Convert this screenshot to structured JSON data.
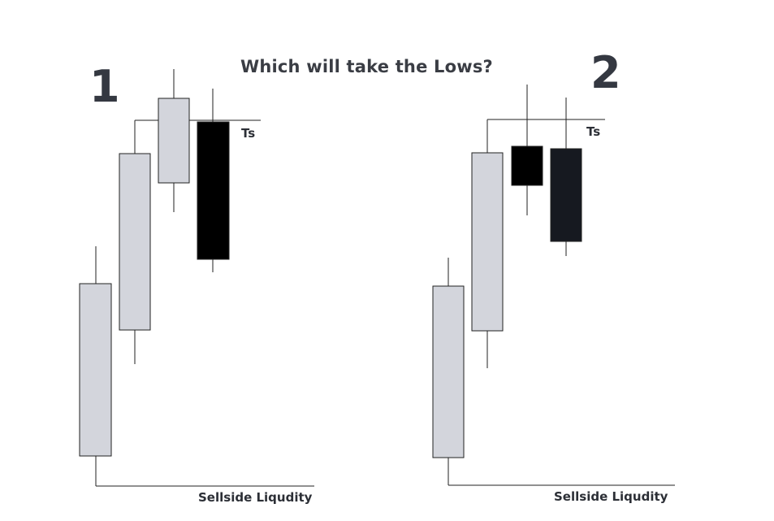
{
  "title": "Which will take the Lows?",
  "panels": [
    {
      "number": "1",
      "top_label": "Ts",
      "bottom_label": "Sellside Liqudity",
      "candles": [
        {
          "direction": "bull",
          "color": "#d3d5dc"
        },
        {
          "direction": "bull",
          "color": "#d3d5dc"
        },
        {
          "direction": "bull",
          "color": "#d3d5dc"
        },
        {
          "direction": "bear",
          "color": "#000000"
        }
      ]
    },
    {
      "number": "2",
      "top_label": "Ts",
      "bottom_label": "Sellside Liqudity",
      "candles": [
        {
          "direction": "bull",
          "color": "#d3d5dc"
        },
        {
          "direction": "bull",
          "color": "#d3d5dc"
        },
        {
          "direction": "bear",
          "color": "#000000"
        },
        {
          "direction": "bear",
          "color": "#161920"
        }
      ]
    }
  ],
  "colors": {
    "bull_body": "#d3d5dc",
    "line": "#222222",
    "text": "#2c2f36"
  }
}
